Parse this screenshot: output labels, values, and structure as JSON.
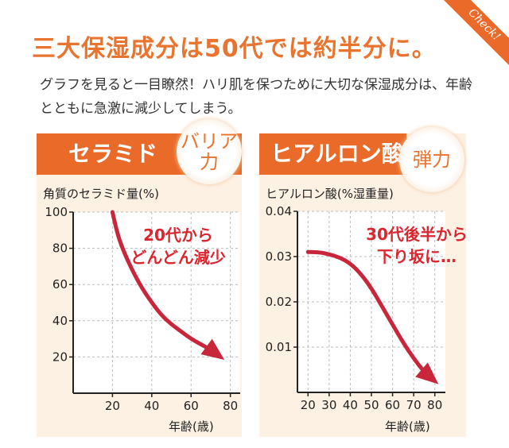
{
  "header": {
    "title": "三大保湿成分は50代では約半分に。",
    "subtitle": "グラフを見ると一目瞭然！ハリ肌を保つために大切な保湿成分は、年齢とともに急激に減少してしまう。",
    "tag": "Check!"
  },
  "colors": {
    "accent": "#ea6a2a",
    "arrow": "#c8263a",
    "panel_bg": "#fdf1e4"
  },
  "chart_data": [
    {
      "type": "line",
      "panel_title": "セラミド",
      "badge": [
        "バリア",
        "力"
      ],
      "ylabel": "角質のセラミド量(%)",
      "xlabel": "年齢(歳)",
      "x_ticks": [
        "20",
        "40",
        "60",
        "80"
      ],
      "y_ticks": [
        "100",
        "80",
        "60",
        "40",
        "20"
      ],
      "xlim": [
        0,
        85
      ],
      "ylim": [
        0,
        100
      ],
      "grid": true,
      "annotation": [
        "20代から",
        "どんどん減少"
      ],
      "series": [
        {
          "x": [
            20,
            22,
            25,
            30,
            35,
            40,
            45,
            50,
            55,
            60,
            65,
            70,
            75
          ],
          "values": [
            100,
            90,
            80,
            68,
            58,
            50,
            43,
            38,
            34,
            30,
            27,
            24,
            20
          ]
        }
      ]
    },
    {
      "type": "line",
      "panel_title": "ヒアルロン酸",
      "badge": [
        "弾力"
      ],
      "ylabel": "ヒアルロン酸(%湿重量)",
      "xlabel": "年齢(歳)",
      "x_ticks": [
        "20",
        "30",
        "40",
        "50",
        "60",
        "70",
        "80"
      ],
      "y_ticks": [
        "0.04",
        "0.03",
        "0.02",
        "0.01"
      ],
      "xlim": [
        15,
        85
      ],
      "ylim": [
        0,
        0.04
      ],
      "grid": true,
      "annotation": [
        "30代後半から",
        "下り坂に…"
      ],
      "series": [
        {
          "x": [
            20,
            25,
            30,
            35,
            40,
            45,
            50,
            55,
            60,
            65,
            70,
            75,
            80
          ],
          "values": [
            0.031,
            0.031,
            0.0305,
            0.0298,
            0.0285,
            0.0262,
            0.023,
            0.019,
            0.015,
            0.011,
            0.0075,
            0.0045,
            0.0025
          ]
        }
      ]
    }
  ]
}
